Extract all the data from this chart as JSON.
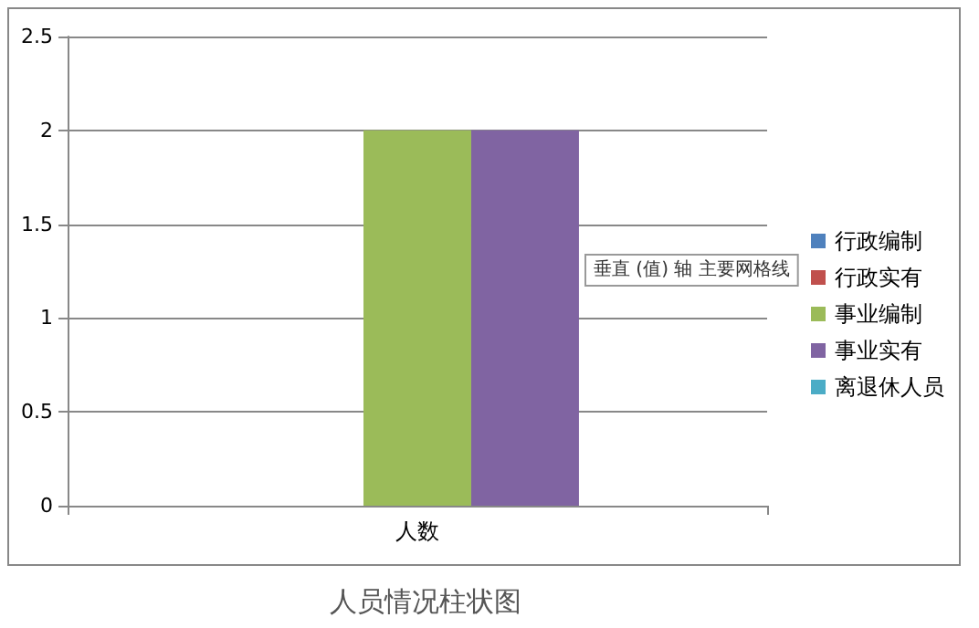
{
  "chart_data": {
    "type": "bar",
    "title": "人员情况柱状图",
    "categories": [
      "人数"
    ],
    "series": [
      {
        "name": "行政编制",
        "color": "#4f81bd",
        "values": [
          0
        ]
      },
      {
        "name": "行政实有",
        "color": "#c0504d",
        "values": [
          0
        ]
      },
      {
        "name": "事业编制",
        "color": "#9bbb59",
        "values": [
          2
        ]
      },
      {
        "name": "事业实有",
        "color": "#8064a2",
        "values": [
          2
        ]
      },
      {
        "name": "离退休人员",
        "color": "#4bacc6",
        "values": [
          0
        ]
      }
    ],
    "ylim": [
      0,
      2.5
    ],
    "yticks": [
      0,
      0.5,
      1,
      1.5,
      2,
      2.5
    ],
    "grid": "y",
    "legend": "right",
    "annotations": [
      "垂直 (值) 轴 主要网格线"
    ]
  }
}
